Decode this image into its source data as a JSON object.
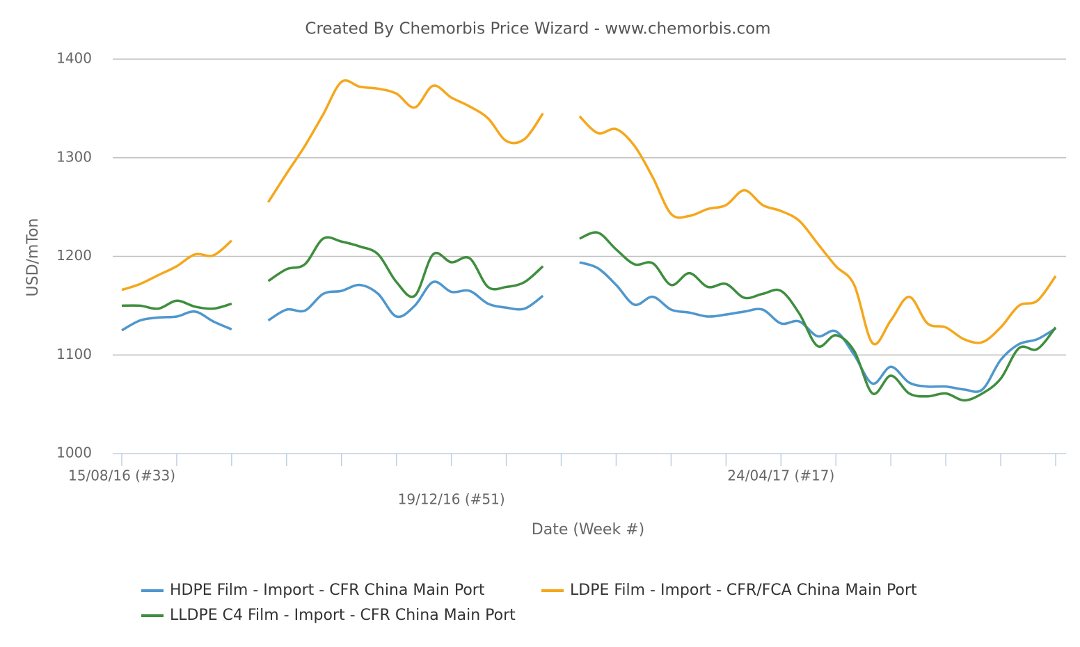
{
  "chart_data": {
    "type": "line",
    "title": "Created By Chemorbis Price Wizard - www.chemorbis.com",
    "x_label": "Date (Week #)",
    "y_label": "USD/mTon",
    "categories": [
      "15/08/16 (#33)",
      null,
      null,
      null,
      null,
      null,
      null,
      null,
      null,
      null,
      null,
      null,
      null,
      null,
      null,
      null,
      null,
      null,
      "19/12/16 (#51)",
      null,
      null,
      null,
      null,
      null,
      null,
      null,
      null,
      null,
      null,
      null,
      null,
      null,
      null,
      null,
      null,
      null,
      "24/04/17 (#17)",
      null,
      null,
      null,
      null,
      null,
      null,
      null,
      null,
      null,
      null,
      null,
      null,
      null,
      null,
      null
    ],
    "series": [
      {
        "name": "HDPE Film - Import - CFR China Main Port",
        "color": "#4f97cd",
        "values": [
          1125,
          1135,
          1138,
          1139,
          1144,
          1134,
          1126,
          null,
          1135,
          1146,
          1145,
          1162,
          1165,
          1171,
          1162,
          1139,
          1150,
          1174,
          1164,
          1165,
          1152,
          1148,
          1147,
          1160,
          null,
          1194,
          1188,
          1171,
          1151,
          1159,
          1146,
          1143,
          1139,
          1141,
          1144,
          1146,
          1132,
          1134,
          1119,
          1124,
          1100,
          1071,
          1088,
          1072,
          1068,
          1068,
          1065,
          1065,
          1095,
          1111,
          1116,
          1127
        ]
      },
      {
        "name": "LDPE Film - Import - CFR/FCA China Main Port",
        "color": "#f5a71c",
        "values": [
          1166,
          1172,
          1181,
          1190,
          1202,
          1201,
          1216,
          null,
          1255,
          1284,
          1312,
          1344,
          1377,
          1372,
          1370,
          1365,
          1351,
          1373,
          1361,
          1352,
          1340,
          1317,
          1319,
          1345,
          null,
          1342,
          1325,
          1329,
          1312,
          1280,
          1243,
          1241,
          1248,
          1252,
          1267,
          1252,
          1246,
          1236,
          1213,
          1190,
          1171,
          1112,
          1135,
          1159,
          1132,
          1128,
          1116,
          1113,
          1128,
          1150,
          1155,
          1180
        ]
      },
      {
        "name": "LLDPE C4 Film - Import - CFR China Main Port",
        "color": "#3e8e3e",
        "values": [
          1150,
          1150,
          1147,
          1155,
          1149,
          1147,
          1152,
          null,
          1175,
          1187,
          1192,
          1218,
          1215,
          1210,
          1202,
          1174,
          1160,
          1202,
          1194,
          1198,
          1169,
          1169,
          1174,
          1190,
          null,
          1218,
          1224,
          1207,
          1192,
          1193,
          1171,
          1183,
          1169,
          1172,
          1158,
          1162,
          1165,
          1142,
          1109,
          1120,
          1104,
          1061,
          1079,
          1061,
          1058,
          1061,
          1054,
          1061,
          1076,
          1107,
          1106,
          1128
        ]
      }
    ],
    "ylim": [
      1000,
      1400
    ],
    "yticks": [
      1000,
      1100,
      1200,
      1300,
      1400
    ],
    "grid": true
  }
}
